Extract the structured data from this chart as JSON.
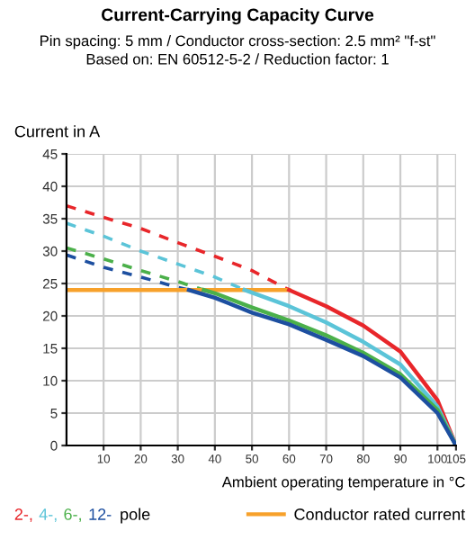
{
  "chart_data": {
    "type": "line",
    "title": "Current-Carrying Capacity Curve",
    "subtitle": "Pin spacing: 5 mm / Conductor cross-section: 2.5 mm² \"f-st\"\nBased on: EN 60512-5-2 / Reduction factor: 1",
    "xlabel": "Ambient operating temperature in °C",
    "ylabel": "Current in A",
    "xlim": [
      0,
      105
    ],
    "ylim": [
      0,
      45
    ],
    "xticks": [
      10,
      20,
      30,
      40,
      50,
      60,
      70,
      80,
      90,
      100,
      105
    ],
    "yticks": [
      0,
      5,
      10,
      15,
      20,
      25,
      30,
      35,
      40,
      45
    ],
    "grid": true,
    "legend": "bottom",
    "marker": "none",
    "annotations": [
      "pole"
    ],
    "series": [
      {
        "color": "#e8262a",
        "line_style": "dashed",
        "x": [
          0,
          10,
          20,
          30,
          40,
          50,
          60
        ],
        "values": [
          37,
          35.2,
          33.5,
          31.3,
          29.2,
          27,
          24
        ]
      },
      {
        "color": "#5bc4d8",
        "line_style": "dashed",
        "x": [
          0,
          10,
          20,
          30,
          40,
          48
        ],
        "values": [
          34.3,
          32.3,
          30,
          28,
          26,
          24
        ]
      },
      {
        "color": "#4bb04a",
        "line_style": "dashed",
        "x": [
          0,
          10,
          20,
          30,
          37
        ],
        "values": [
          30.5,
          28.8,
          27,
          25.3,
          24
        ]
      },
      {
        "color": "#1d4fa0",
        "line_style": "dashed",
        "x": [
          0,
          10,
          20,
          30,
          33
        ],
        "values": [
          29.4,
          27.5,
          26,
          24.4,
          24
        ]
      },
      {
        "name": "Conductor rated current",
        "color": "#f7a12b",
        "line_style": "solid",
        "x": [
          0,
          60
        ],
        "values": [
          24,
          24
        ]
      },
      {
        "name": "2-,",
        "color": "#e8262a",
        "line_style": "solid",
        "x": [
          60,
          70,
          80,
          90,
          100,
          105
        ],
        "values": [
          24,
          21.5,
          18.5,
          14.5,
          7,
          0
        ]
      },
      {
        "name": "4-,",
        "color": "#5bc4d8",
        "line_style": "solid",
        "x": [
          48,
          60,
          70,
          80,
          90,
          100,
          105
        ],
        "values": [
          24,
          21.5,
          19,
          16,
          12.5,
          6,
          0
        ]
      },
      {
        "name": "6-,",
        "color": "#4bb04a",
        "line_style": "solid",
        "x": [
          37,
          40,
          50,
          60,
          70,
          80,
          90,
          100,
          105
        ],
        "values": [
          24,
          23.5,
          21.3,
          19.3,
          17,
          14.3,
          11,
          5.5,
          0
        ]
      },
      {
        "name": "12-",
        "color": "#1d4fa0",
        "line_style": "solid",
        "x": [
          33,
          40,
          50,
          60,
          70,
          80,
          90,
          100,
          105
        ],
        "values": [
          24,
          22.8,
          20.5,
          18.7,
          16.3,
          13.8,
          10.5,
          5,
          0
        ]
      }
    ]
  }
}
